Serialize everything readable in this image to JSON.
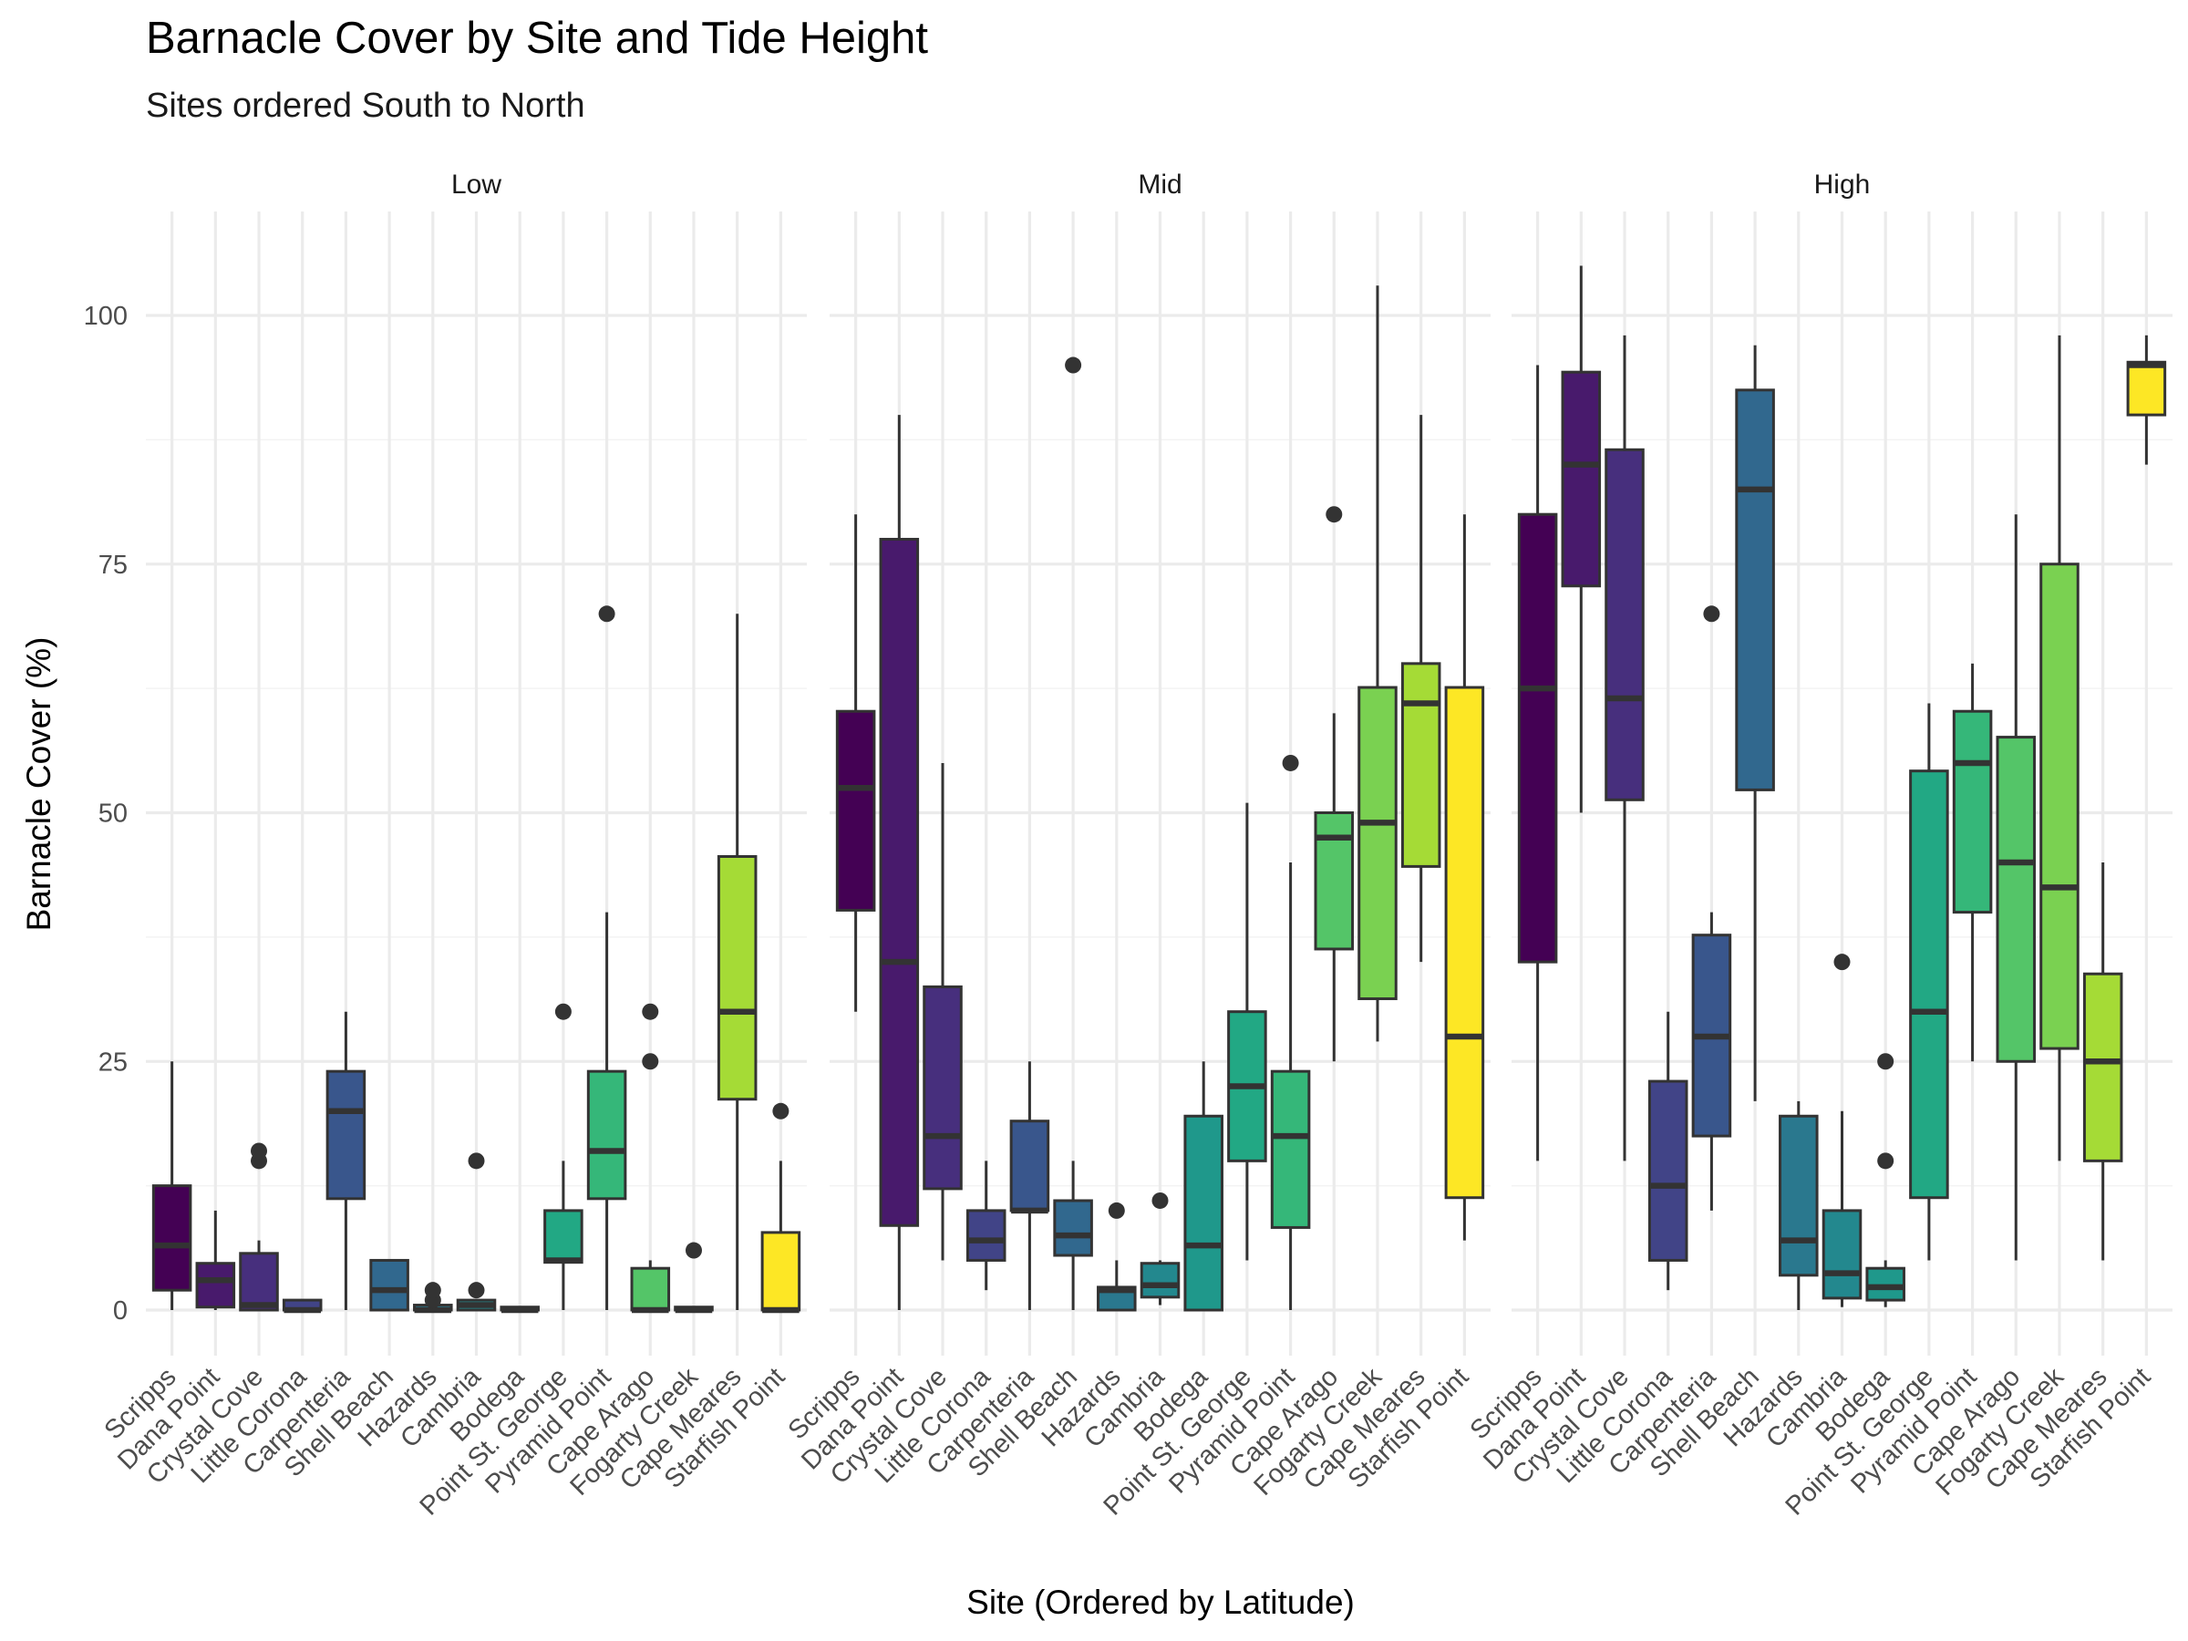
{
  "chart_data": {
    "type": "boxplot",
    "title": "Barnacle Cover by Site and Tide Height",
    "subtitle": "Sites ordered South to North",
    "xlabel": "Site (Ordered by Latitude)",
    "ylabel": "Barnacle Cover (%)",
    "ylim": [
      -6,
      110
    ],
    "yticks": [
      0,
      25,
      50,
      75,
      100
    ],
    "grid": true,
    "categories": [
      "Scripps",
      "Dana Point",
      "Crystal Cove",
      "Little Corona",
      "Carpenteria",
      "Shell Beach",
      "Hazards",
      "Cambria",
      "Bodega",
      "Point St. George",
      "Pyramid Point",
      "Cape Arago",
      "Fogarty Creek",
      "Cape Meares",
      "Starfish Point"
    ],
    "colors": [
      "#440154",
      "#481a6c",
      "#472f7d",
      "#414487",
      "#39568c",
      "#31688e",
      "#2a788e",
      "#23888e",
      "#1f988b",
      "#22a884",
      "#35b779",
      "#54c568",
      "#7ad151",
      "#a5db36",
      "#fde725"
    ],
    "panels": [
      {
        "label": "Low",
        "boxes": [
          {
            "site": "Scripps",
            "lower": 0,
            "q1": 2,
            "median": 6.5,
            "q3": 12.5,
            "upper": 25,
            "outliers": []
          },
          {
            "site": "Dana Point",
            "lower": 0,
            "q1": 0.3,
            "median": 3,
            "q3": 4.7,
            "upper": 10,
            "outliers": []
          },
          {
            "site": "Crystal Cove",
            "lower": 0,
            "q1": 0,
            "median": 0.5,
            "q3": 5.7,
            "upper": 7,
            "outliers": [
              15,
              16
            ]
          },
          {
            "site": "Little Corona",
            "lower": 0,
            "q1": 0,
            "median": 0,
            "q3": 1,
            "upper": 1,
            "outliers": []
          },
          {
            "site": "Carpenteria",
            "lower": 0,
            "q1": 11.2,
            "median": 20,
            "q3": 24,
            "upper": 30,
            "outliers": []
          },
          {
            "site": "Shell Beach",
            "lower": 0,
            "q1": 0,
            "median": 2,
            "q3": 5,
            "upper": 5,
            "outliers": []
          },
          {
            "site": "Hazards",
            "lower": 0,
            "q1": 0,
            "median": 0,
            "q3": 0.5,
            "upper": 0.5,
            "outliers": [
              1,
              2
            ]
          },
          {
            "site": "Cambria",
            "lower": 0,
            "q1": 0,
            "median": 0.5,
            "q3": 1,
            "upper": 1,
            "outliers": [
              2,
              15
            ]
          },
          {
            "site": "Bodega",
            "lower": 0,
            "q1": 0,
            "median": 0,
            "q3": 0.3,
            "upper": 0.3,
            "outliers": []
          },
          {
            "site": "Point St. George",
            "lower": 0,
            "q1": 4.8,
            "median": 5,
            "q3": 10,
            "upper": 15,
            "outliers": [
              30
            ]
          },
          {
            "site": "Pyramid Point",
            "lower": 0,
            "q1": 11.2,
            "median": 16,
            "q3": 24,
            "upper": 40,
            "outliers": [
              70
            ]
          },
          {
            "site": "Cape Arago",
            "lower": 0,
            "q1": 0,
            "median": 0,
            "q3": 4.2,
            "upper": 5,
            "outliers": [
              25,
              30
            ]
          },
          {
            "site": "Fogarty Creek",
            "lower": 0,
            "q1": 0,
            "median": 0,
            "q3": 0.3,
            "upper": 0.3,
            "outliers": [
              6
            ]
          },
          {
            "site": "Cape Meares",
            "lower": 0,
            "q1": 21.2,
            "median": 30,
            "q3": 45.6,
            "upper": 70,
            "outliers": []
          },
          {
            "site": "Starfish Point",
            "lower": 0,
            "q1": 0,
            "median": 0,
            "q3": 7.8,
            "upper": 15,
            "outliers": [
              20
            ]
          }
        ]
      },
      {
        "label": "Mid",
        "boxes": [
          {
            "site": "Scripps",
            "lower": 30,
            "q1": 40.2,
            "median": 52.5,
            "q3": 60.2,
            "upper": 80,
            "outliers": []
          },
          {
            "site": "Dana Point",
            "lower": 0,
            "q1": 8.5,
            "median": 35,
            "q3": 77.5,
            "upper": 90,
            "outliers": []
          },
          {
            "site": "Crystal Cove",
            "lower": 5,
            "q1": 12.2,
            "median": 17.5,
            "q3": 32.5,
            "upper": 55,
            "outliers": []
          },
          {
            "site": "Little Corona",
            "lower": 2,
            "q1": 5,
            "median": 7,
            "q3": 10,
            "upper": 15,
            "outliers": []
          },
          {
            "site": "Carpenteria",
            "lower": 0,
            "q1": 10,
            "median": 10,
            "q3": 19,
            "upper": 25,
            "outliers": []
          },
          {
            "site": "Shell Beach",
            "lower": 0,
            "q1": 5.5,
            "median": 7.5,
            "q3": 11,
            "upper": 15,
            "outliers": [
              95
            ]
          },
          {
            "site": "Hazards",
            "lower": 0,
            "q1": 0,
            "median": 2,
            "q3": 2.3,
            "upper": 5,
            "outliers": [
              10
            ]
          },
          {
            "site": "Cambria",
            "lower": 0.5,
            "q1": 1.3,
            "median": 2.5,
            "q3": 4.7,
            "upper": 5,
            "outliers": [
              11
            ]
          },
          {
            "site": "Bodega",
            "lower": 0,
            "q1": 0,
            "median": 6.5,
            "q3": 19.5,
            "upper": 25,
            "outliers": []
          },
          {
            "site": "Point St. George",
            "lower": 5,
            "q1": 15,
            "median": 22.5,
            "q3": 30,
            "upper": 51,
            "outliers": []
          },
          {
            "site": "Pyramid Point",
            "lower": 0,
            "q1": 8.3,
            "median": 17.5,
            "q3": 24,
            "upper": 45,
            "outliers": [
              55
            ]
          },
          {
            "site": "Cape Arago",
            "lower": 25,
            "q1": 36.3,
            "median": 47.5,
            "q3": 50,
            "upper": 60,
            "outliers": [
              80
            ]
          },
          {
            "site": "Fogarty Creek",
            "lower": 27,
            "q1": 31.3,
            "median": 49,
            "q3": 62.6,
            "upper": 103,
            "outliers": []
          },
          {
            "site": "Cape Meares",
            "lower": 35,
            "q1": 44.6,
            "median": 61,
            "q3": 65,
            "upper": 90,
            "outliers": []
          },
          {
            "site": "Starfish Point",
            "lower": 7,
            "q1": 11.3,
            "median": 27.5,
            "q3": 62.6,
            "upper": 80,
            "outliers": []
          }
        ]
      },
      {
        "label": "High",
        "boxes": [
          {
            "site": "Scripps",
            "lower": 15,
            "q1": 35,
            "median": 62.5,
            "q3": 80,
            "upper": 95,
            "outliers": []
          },
          {
            "site": "Dana Point",
            "lower": 50,
            "q1": 72.8,
            "median": 85,
            "q3": 94.3,
            "upper": 105,
            "outliers": []
          },
          {
            "site": "Crystal Cove",
            "lower": 15,
            "q1": 51.3,
            "median": 61.5,
            "q3": 86.5,
            "upper": 98,
            "outliers": []
          },
          {
            "site": "Little Corona",
            "lower": 2,
            "q1": 5,
            "median": 12.5,
            "q3": 23,
            "upper": 30,
            "outliers": []
          },
          {
            "site": "Carpenteria",
            "lower": 10,
            "q1": 17.5,
            "median": 27.5,
            "q3": 37.7,
            "upper": 40,
            "outliers": [
              70
            ]
          },
          {
            "site": "Shell Beach",
            "lower": 21,
            "q1": 52.3,
            "median": 82.5,
            "q3": 92.5,
            "upper": 97,
            "outliers": []
          },
          {
            "site": "Hazards",
            "lower": 0,
            "q1": 3.5,
            "median": 7,
            "q3": 19.5,
            "upper": 21,
            "outliers": []
          },
          {
            "site": "Cambria",
            "lower": 0.3,
            "q1": 1.2,
            "median": 3.7,
            "q3": 10,
            "upper": 20,
            "outliers": [
              35
            ]
          },
          {
            "site": "Bodega",
            "lower": 0.3,
            "q1": 1,
            "median": 2.3,
            "q3": 4.2,
            "upper": 5,
            "outliers": [
              15,
              25
            ]
          },
          {
            "site": "Point St. George",
            "lower": 5,
            "q1": 11.3,
            "median": 30,
            "q3": 54.2,
            "upper": 61,
            "outliers": []
          },
          {
            "site": "Pyramid Point",
            "lower": 25,
            "q1": 40,
            "median": 55,
            "q3": 60.2,
            "upper": 65,
            "outliers": []
          },
          {
            "site": "Cape Arago",
            "lower": 5,
            "q1": 25,
            "median": 45,
            "q3": 57.6,
            "upper": 80,
            "outliers": []
          },
          {
            "site": "Fogarty Creek",
            "lower": 15,
            "q1": 26.3,
            "median": 42.5,
            "q3": 75,
            "upper": 98,
            "outliers": []
          },
          {
            "site": "Cape Meares",
            "lower": 5,
            "q1": 15,
            "median": 25,
            "q3": 33.8,
            "upper": 45,
            "outliers": []
          },
          {
            "site": "Starfish Point",
            "lower": 85,
            "q1": 90,
            "median": 95,
            "q3": 95.3,
            "upper": 98,
            "outliers": []
          }
        ]
      }
    ]
  }
}
